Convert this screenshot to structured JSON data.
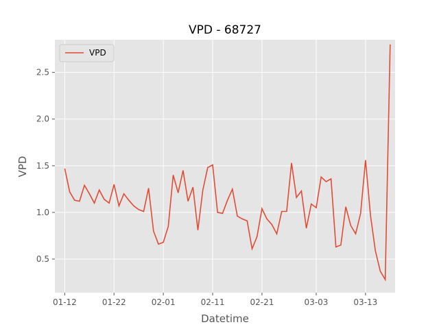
{
  "chart_data": {
    "type": "line",
    "title": "VPD - 68727",
    "xlabel": "Datetime",
    "ylabel": "VPD",
    "grid": true,
    "legend_position": "top-left",
    "x_ticks": [
      "01-12",
      "01-22",
      "02-01",
      "02-11",
      "02-21",
      "03-03",
      "03-13"
    ],
    "x_range": [
      "01-10",
      "03-19"
    ],
    "y_ticks": [
      "0.5",
      "1.0",
      "1.5",
      "2.0",
      "2.5"
    ],
    "y_range": [
      0.14,
      2.85
    ],
    "colors": {
      "line": "#e24a33",
      "plot_bg": "#e5e5e5",
      "grid": "#ffffff"
    },
    "series": [
      {
        "name": "VPD",
        "x": [
          "01-12",
          "01-13",
          "01-14",
          "01-15",
          "01-16",
          "01-17",
          "01-18",
          "01-19",
          "01-20",
          "01-21",
          "01-22",
          "01-23",
          "01-24",
          "01-25",
          "01-26",
          "01-27",
          "01-28",
          "01-29",
          "01-30",
          "01-31",
          "02-01",
          "02-02",
          "02-03",
          "02-04",
          "02-05",
          "02-06",
          "02-07",
          "02-08",
          "02-09",
          "02-10",
          "02-11",
          "02-12",
          "02-13",
          "02-14",
          "02-15",
          "02-16",
          "02-17",
          "02-18",
          "02-19",
          "02-20",
          "02-21",
          "02-22",
          "02-23",
          "02-24",
          "02-25",
          "02-26",
          "02-27",
          "02-28",
          "02-29",
          "03-01",
          "03-02",
          "03-03",
          "03-04",
          "03-05",
          "03-06",
          "03-07",
          "03-08",
          "03-09",
          "03-10",
          "03-11",
          "03-12",
          "03-13",
          "03-14",
          "03-15",
          "03-16",
          "03-17",
          "03-18"
        ],
        "y": [
          1.47,
          1.22,
          1.13,
          1.12,
          1.29,
          1.2,
          1.1,
          1.24,
          1.14,
          1.1,
          1.3,
          1.07,
          1.2,
          1.13,
          1.07,
          1.03,
          1.01,
          1.26,
          0.8,
          0.66,
          0.68,
          0.85,
          1.4,
          1.21,
          1.45,
          1.12,
          1.27,
          0.81,
          1.24,
          1.48,
          1.51,
          1.0,
          0.99,
          1.13,
          1.25,
          0.96,
          0.93,
          0.91,
          0.61,
          0.74,
          1.04,
          0.93,
          0.87,
          0.77,
          1.01,
          1.01,
          1.53,
          1.16,
          1.23,
          0.83,
          1.09,
          1.05,
          1.38,
          1.33,
          1.36,
          0.63,
          0.65,
          1.06,
          0.86,
          0.77,
          0.99,
          1.56,
          0.97,
          0.59,
          0.37,
          0.28,
          2.8
        ]
      }
    ]
  }
}
